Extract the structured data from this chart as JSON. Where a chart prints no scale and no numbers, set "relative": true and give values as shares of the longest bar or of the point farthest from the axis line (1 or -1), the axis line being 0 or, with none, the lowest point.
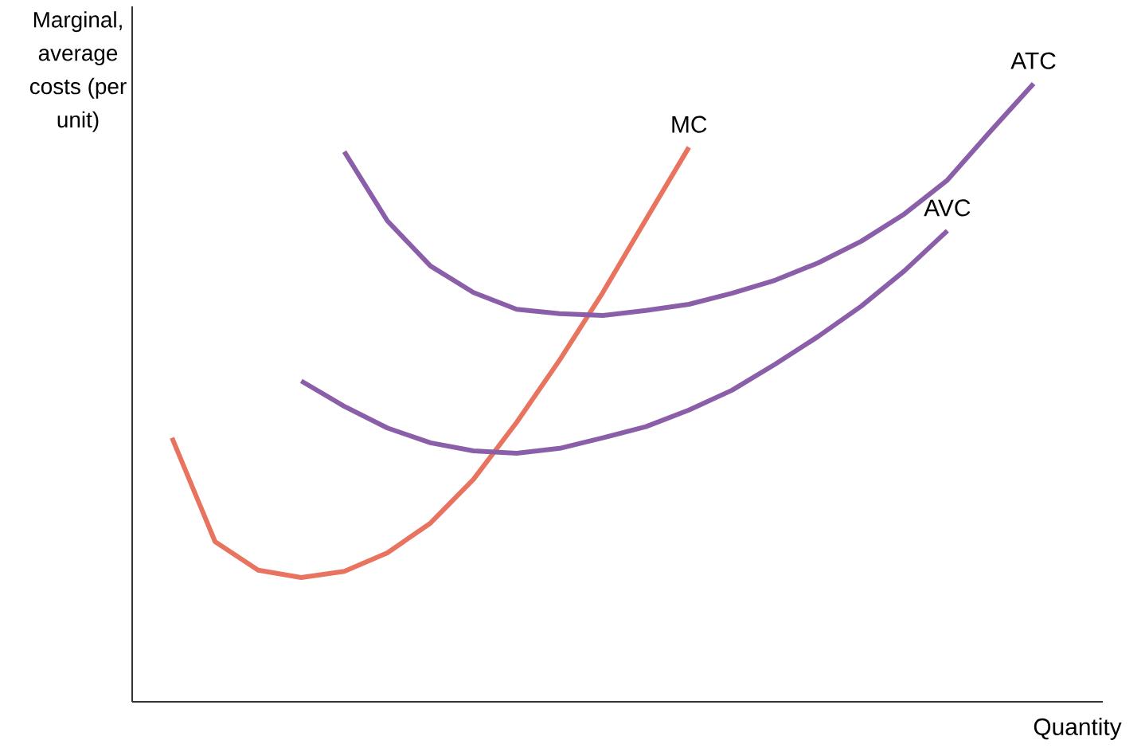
{
  "chart_data": {
    "type": "line",
    "relative": true,
    "xlabel": "Quantity",
    "ylabel": "Marginal, average costs (per unit)",
    "categories": [
      null,
      null,
      null,
      null,
      null,
      null,
      null,
      null,
      null,
      null,
      null,
      null,
      null,
      null,
      null,
      null,
      null,
      null,
      null,
      null,
      null
    ],
    "series": [
      {
        "name": "MC",
        "color": "#e8735f",
        "values": [
          0.427,
          0.259,
          0.213,
          0.201,
          0.211,
          0.241,
          0.289,
          0.36,
          0.452,
          0.553,
          0.662,
          0.78,
          0.897,
          null,
          null,
          null,
          null,
          null,
          null,
          null,
          null
        ]
      },
      {
        "name": "ATC",
        "color": "#8a5ea8",
        "values": [
          null,
          null,
          null,
          null,
          0.89,
          0.778,
          0.705,
          0.662,
          0.635,
          0.628,
          0.625,
          0.633,
          0.643,
          0.661,
          0.682,
          0.71,
          0.745,
          0.789,
          0.844,
          0.923,
          1.0
        ]
      },
      {
        "name": "AVC",
        "color": "#8a5ea8",
        "values": [
          null,
          null,
          null,
          0.519,
          0.478,
          0.443,
          0.419,
          0.406,
          0.402,
          0.41,
          0.427,
          0.445,
          0.472,
          0.504,
          0.546,
          0.591,
          0.64,
          0.697,
          0.762,
          null,
          null
        ]
      }
    ]
  }
}
